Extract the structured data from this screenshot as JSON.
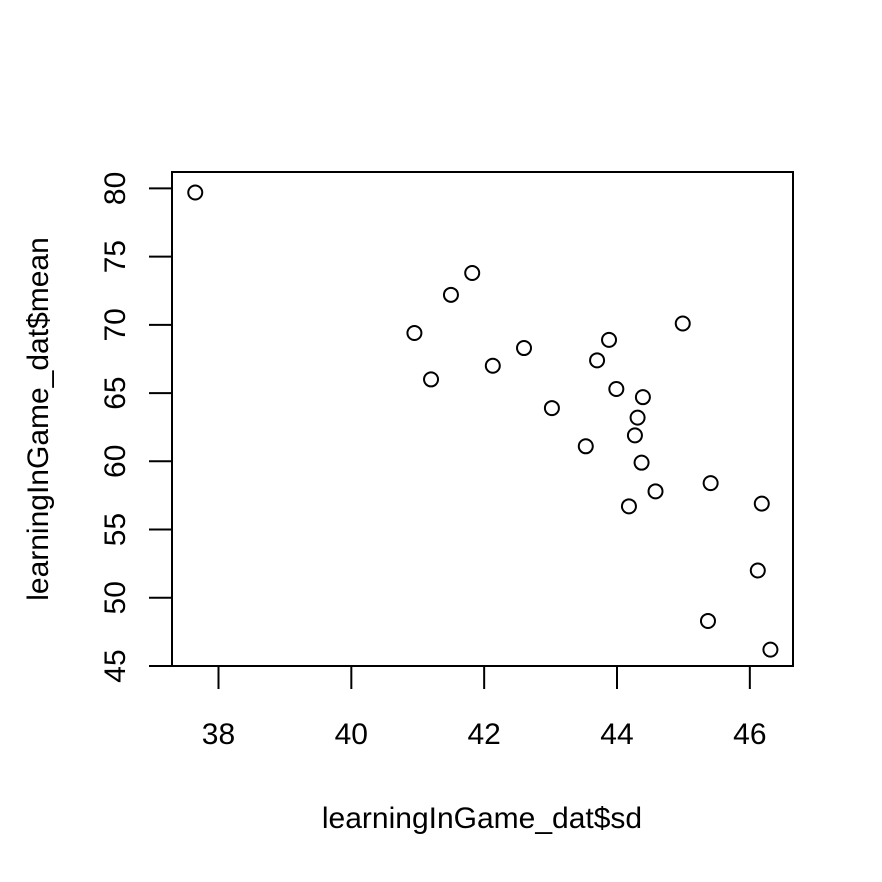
{
  "chart_data": {
    "type": "scatter",
    "title": "",
    "xlabel": "learningInGame_dat$sd",
    "ylabel": "learningInGame_dat$mean",
    "xlim": [
      37.3,
      46.65
    ],
    "ylim": [
      45,
      81.2
    ],
    "xticks": [
      38,
      40,
      42,
      44,
      46
    ],
    "yticks": [
      45,
      50,
      55,
      60,
      65,
      70,
      75,
      80
    ],
    "grid": false,
    "legend": "none",
    "marker": "open-circle",
    "points": [
      {
        "x": 37.65,
        "y": 79.7
      },
      {
        "x": 40.95,
        "y": 69.4
      },
      {
        "x": 41.2,
        "y": 66.0
      },
      {
        "x": 41.5,
        "y": 72.2
      },
      {
        "x": 41.82,
        "y": 73.8
      },
      {
        "x": 42.13,
        "y": 67.0
      },
      {
        "x": 42.6,
        "y": 68.3
      },
      {
        "x": 43.02,
        "y": 63.9
      },
      {
        "x": 43.53,
        "y": 61.1
      },
      {
        "x": 43.7,
        "y": 67.4
      },
      {
        "x": 43.88,
        "y": 68.9
      },
      {
        "x": 43.99,
        "y": 65.3
      },
      {
        "x": 44.18,
        "y": 56.7
      },
      {
        "x": 44.27,
        "y": 61.9
      },
      {
        "x": 44.31,
        "y": 63.2
      },
      {
        "x": 44.37,
        "y": 59.9
      },
      {
        "x": 44.39,
        "y": 64.7
      },
      {
        "x": 44.58,
        "y": 57.8
      },
      {
        "x": 44.99,
        "y": 70.1
      },
      {
        "x": 45.37,
        "y": 48.3
      },
      {
        "x": 45.41,
        "y": 58.4
      },
      {
        "x": 46.12,
        "y": 52.0
      },
      {
        "x": 46.18,
        "y": 56.9
      },
      {
        "x": 46.31,
        "y": 46.2
      }
    ]
  }
}
